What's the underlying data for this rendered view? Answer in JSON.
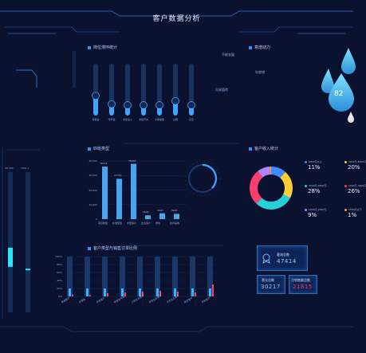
{
  "header": {
    "title": "客户数据分析"
  },
  "panels": {
    "position_lag": {
      "title": "岗位滞环统计",
      "categories": [
        "可能会",
        "代开会",
        "冲压注入",
        "冲压开关",
        "冷却故障",
        "过程",
        "高压"
      ],
      "levels": [
        0.38,
        0.22,
        0.2,
        0.2,
        0.2,
        0.28,
        0.2
      ]
    },
    "intention": {
      "title": "意增动力",
      "labels": [
        "不能发展",
        "年收增",
        "风采值得"
      ],
      "drop_value": "82"
    },
    "industry": {
      "title": "匹班类型",
      "y_ticks": [
        "40,000",
        "30,000",
        "20,000",
        "10,000",
        "0"
      ],
      "categories": [
        "项目制型",
        "标准型型",
        "中型客户",
        "企业客户",
        "学校",
        "政府采购"
      ],
      "values": [
        36112,
        27711,
        38000,
        2622,
        4047,
        3621
      ],
      "value_labels": [
        "36112",
        "27711",
        "38000",
        "2622",
        "4047",
        "3621"
      ]
    },
    "revenue": {
      "title": "客户收入统计",
      "segments": [
        {
          "label": "6000元以上",
          "pct": "11%",
          "color": "#3d8bff",
          "value": 11
        },
        {
          "label": "4000元-6000元",
          "pct": "20%",
          "color": "#ffcc33",
          "value": 20
        },
        {
          "label": "3000元-4000元",
          "pct": "28%",
          "color": "#25d0d8",
          "value": 28
        },
        {
          "label": "2000元-3000元",
          "pct": "26%",
          "color": "#ff3d6e",
          "value": 26
        },
        {
          "label": "1500元-2000元",
          "pct": "9%",
          "color": "#b084ff",
          "value": 9
        },
        {
          "label": "1500元以下",
          "pct": "1%",
          "color": "#ff9a2e",
          "value": 1
        }
      ]
    },
    "monthly": {
      "title": "客户类型与销售订单比例",
      "y_ticks": [
        "100%",
        "80%",
        "60%",
        "40%",
        "20%",
        "0%"
      ],
      "categories": [
        "普通客户",
        "代理商",
        "日常客户",
        "年度合作商",
        "小型企业客户",
        "中型企业客户",
        "大型企业客户",
        "政府客户",
        "学校客户"
      ]
    },
    "left_gauges": {
      "labels": [
        "90 100",
        "1001 L"
      ],
      "levels": [
        0.45,
        0.3
      ]
    },
    "cards": {
      "top": {
        "label": "客流总数",
        "value": "47414",
        "color": "#9fc8ff"
      },
      "bl": {
        "label": "营业总数",
        "value": "30217",
        "color": "#8fc8ff"
      },
      "br": {
        "label": "月销售额总数",
        "value": "21815",
        "color": "#ff3b5c"
      }
    }
  }
}
